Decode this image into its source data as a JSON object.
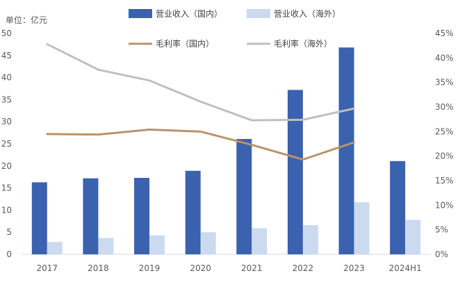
{
  "chart_data": {
    "type": "bar",
    "title": "",
    "unit_label": "单位：亿元",
    "categories": [
      "2017",
      "2018",
      "2019",
      "2020",
      "2021",
      "2022",
      "2023",
      "2024H1"
    ],
    "series": [
      {
        "name": "营业收入（国内）",
        "type": "bar",
        "axis": "left",
        "color": "#3A62AE",
        "values": [
          16.3,
          17.2,
          17.3,
          18.9,
          26.1,
          37.2,
          46.8,
          21.1
        ]
      },
      {
        "name": "营业收入（海外）",
        "type": "bar",
        "axis": "left",
        "color": "#CCDAF0",
        "values": [
          2.8,
          3.7,
          4.3,
          5.0,
          5.9,
          6.6,
          11.8,
          7.8
        ]
      },
      {
        "name": "毛利率（国内）",
        "type": "line",
        "axis": "right",
        "color": "#B9936A",
        "values": [
          24.5,
          24.4,
          25.4,
          25.0,
          22.3,
          19.3,
          22.8,
          null
        ]
      },
      {
        "name": "毛利率（海外）",
        "type": "line",
        "axis": "right",
        "color": "#BFBFBF",
        "values": [
          42.8,
          37.6,
          35.4,
          31.1,
          27.3,
          27.4,
          29.7,
          null
        ]
      }
    ],
    "y_left": {
      "min": 0,
      "max": 50,
      "step": 5,
      "ticks": [
        "0",
        "5",
        "10",
        "15",
        "20",
        "25",
        "30",
        "35",
        "40",
        "45",
        "50"
      ]
    },
    "y_right": {
      "min": 0,
      "max": 45,
      "step": 5,
      "ticks": [
        "0%",
        "5%",
        "10%",
        "15%",
        "20%",
        "25%",
        "30%",
        "35%",
        "40%",
        "45%"
      ]
    },
    "legend_position": "top"
  }
}
